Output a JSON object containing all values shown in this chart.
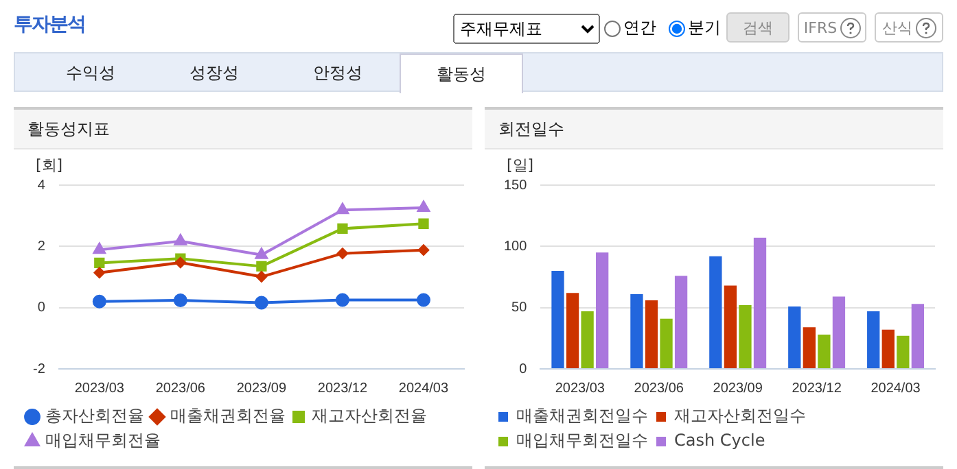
{
  "chart_data": [
    {
      "type": "other",
      "title": "투자분석",
      "annotations": [
        "주재무제표",
        "연간",
        "분기",
        "검색",
        "IFRS",
        "산식",
        "수익성",
        "성장성",
        "안정성",
        "활동성"
      ]
    },
    {
      "type": "line",
      "title": "활동성지표",
      "ylabel": "[회]",
      "categories": [
        "2023/03",
        "2023/06",
        "2023/09",
        "2023/12",
        "2024/03"
      ],
      "ylim": [
        -2,
        4
      ],
      "yticks": [
        -2,
        0,
        2,
        4
      ],
      "grid": "y",
      "legend": "bottom",
      "series": [
        {
          "name": "총자산회전율",
          "color": "#2266dd",
          "marker": "circle",
          "values": [
            0.2,
            0.24,
            0.16,
            0.25,
            0.25
          ]
        },
        {
          "name": "매출채권회전율",
          "color": "#cc3300",
          "marker": "diamond",
          "values": [
            1.14,
            1.47,
            1.01,
            1.77,
            1.88
          ]
        },
        {
          "name": "재고자산회전율",
          "color": "#88bb11",
          "marker": "square",
          "values": [
            1.46,
            1.6,
            1.35,
            2.58,
            2.74
          ]
        },
        {
          "name": "매입채무회전율",
          "color": "#aa77dd",
          "marker": "triangle",
          "values": [
            1.89,
            2.17,
            1.72,
            3.19,
            3.26
          ]
        }
      ]
    },
    {
      "type": "bar",
      "title": "회전일수",
      "ylabel": "[일]",
      "categories": [
        "2023/03",
        "2023/06",
        "2023/09",
        "2023/12",
        "2024/03"
      ],
      "ylim": [
        0,
        150
      ],
      "yticks": [
        0,
        50,
        100,
        150
      ],
      "grid": "y",
      "legend": "bottom",
      "series": [
        {
          "name": "매출채권회전일수",
          "color": "#2266dd",
          "values": [
            80,
            61,
            92,
            51,
            47
          ]
        },
        {
          "name": "재고자산회전일수",
          "color": "#cc3300",
          "values": [
            62,
            56,
            68,
            34,
            32
          ]
        },
        {
          "name": "매입채무회전일수",
          "color": "#88bb11",
          "values": [
            47,
            41,
            52,
            28,
            27
          ]
        },
        {
          "name": "Cash Cycle",
          "color": "#aa77dd",
          "values": [
            95,
            76,
            107,
            59,
            53
          ]
        }
      ]
    }
  ]
}
